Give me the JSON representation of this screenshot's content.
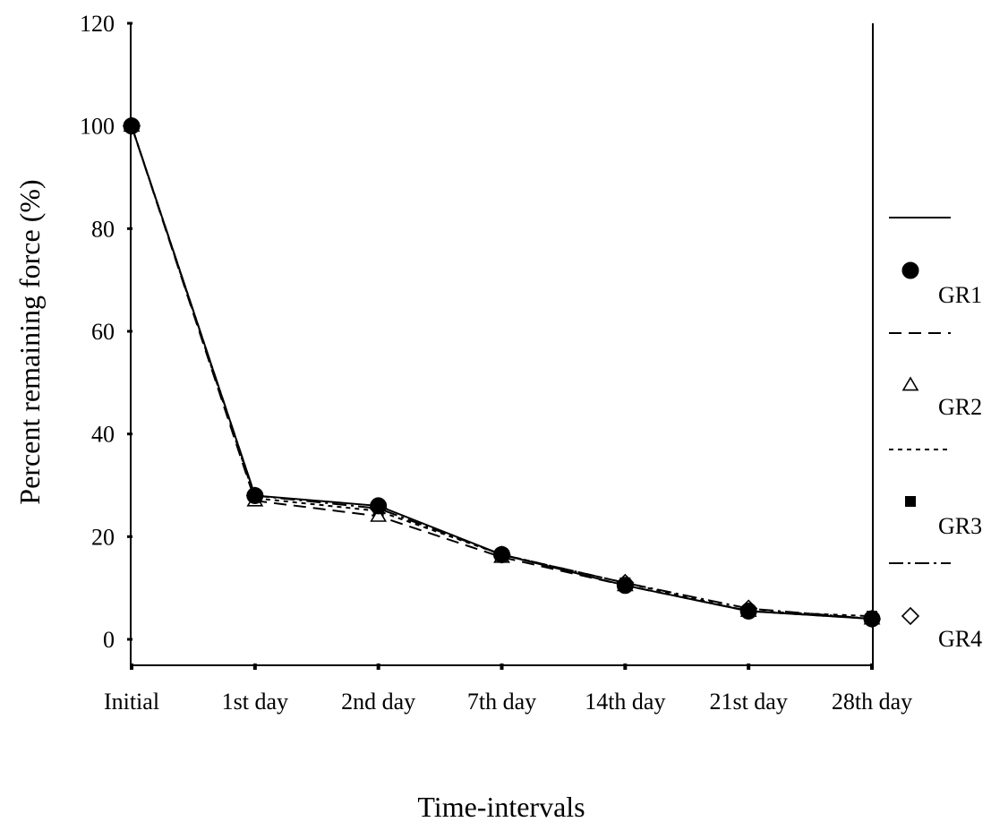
{
  "chart_data": {
    "type": "line",
    "xlabel": "Time-intervals",
    "ylabel": "Percent remaining force (%)",
    "ylim": [
      0,
      120
    ],
    "y_ticks": [
      "0",
      "20",
      "40",
      "60",
      "80",
      "100",
      "120"
    ],
    "categories": [
      "Initial",
      "1st day",
      "2nd day",
      "7th day",
      "14th day",
      "21st day",
      "28th day"
    ],
    "grid": false,
    "legend_position": "right",
    "series": [
      {
        "name": "GR1",
        "line_style": "solid",
        "marker": "filled-circle",
        "values": [
          100,
          28,
          26,
          16.5,
          10.5,
          5.5,
          4
        ]
      },
      {
        "name": "GR2",
        "line_style": "long-dash",
        "marker": "open-triangle",
        "values": [
          100,
          27,
          24,
          16,
          10.5,
          5.5,
          4
        ]
      },
      {
        "name": "GR3",
        "line_style": "short-dash",
        "marker": "filled-square",
        "values": [
          100,
          27.5,
          25,
          16.5,
          11,
          5.5,
          4.5
        ]
      },
      {
        "name": "GR4",
        "line_style": "dash-dot",
        "marker": "open-diamond",
        "values": [
          100,
          28,
          25.5,
          16.5,
          11,
          6,
          4
        ]
      }
    ],
    "colors": {
      "ink": "#000000",
      "background": "#ffffff"
    }
  }
}
